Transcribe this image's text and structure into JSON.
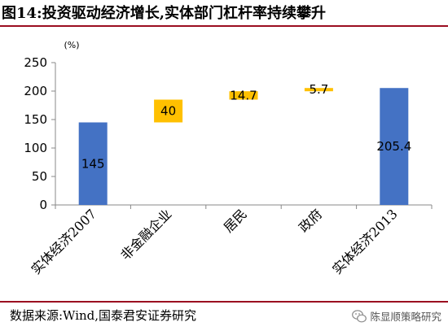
{
  "title": "图14:投资驱动经济增长,实体部门杠杆率持续攀升",
  "footer": {
    "source": "数据来源:Wind,国泰君安证券研究",
    "watermark": "陈显顺策略研究",
    "watermark_icon": "wechat-icon"
  },
  "chart_data": {
    "type": "bar",
    "subtype": "waterfall",
    "unit": "(%)",
    "categories": [
      "实体经济2007",
      "非金融企业",
      "居民",
      "政府",
      "实体经济2013"
    ],
    "values": [
      145,
      40,
      14.7,
      5.7,
      205.4
    ],
    "labels": [
      "145",
      "40",
      "14.7",
      "5.7",
      "205.4"
    ],
    "kinds": [
      "total",
      "increase",
      "increase",
      "increase",
      "total"
    ],
    "ylim": [
      0,
      250
    ],
    "yticks": [
      0,
      50,
      100,
      150,
      200,
      250
    ],
    "grid": false,
    "legend": "none",
    "colors": {
      "total": "#4472c4",
      "increase": "#ffc000"
    }
  }
}
